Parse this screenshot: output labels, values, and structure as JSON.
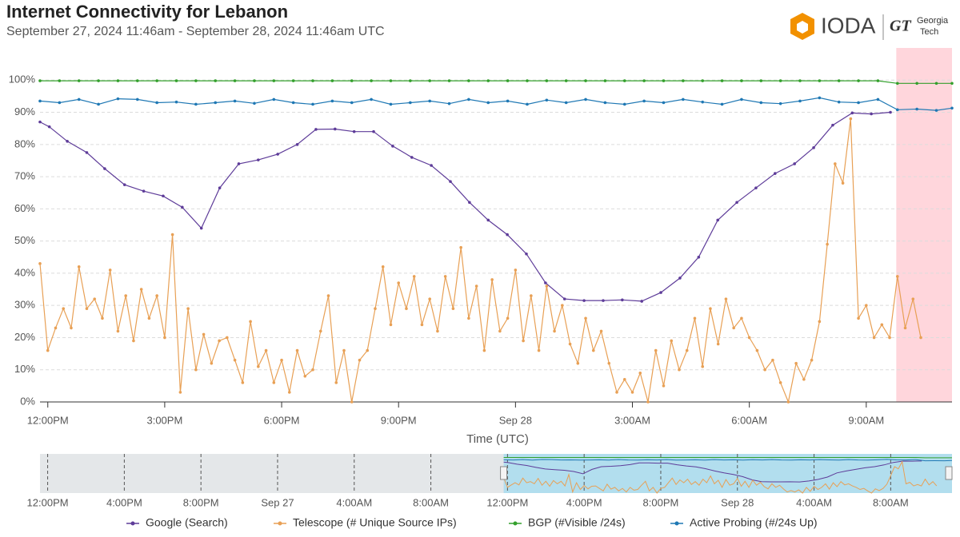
{
  "chart_data": {
    "type": "line",
    "title": "Internet Connectivity for Lebanon",
    "subtitle": "September 27, 2024 11:46am - September 28, 2024 11:46am UTC",
    "x_label": "Time (UTC)",
    "logo": {
      "name": "IODA",
      "partner_abbr": "GT",
      "partner_line1": "Georgia",
      "partner_line2": "Tech"
    },
    "xlim": [
      11.8,
      35.2
    ],
    "ylim": [
      0,
      110
    ],
    "xticks": [
      {
        "value": 12,
        "label": "12:00PM"
      },
      {
        "value": 15,
        "label": "3:00PM"
      },
      {
        "value": 18,
        "label": "6:00PM"
      },
      {
        "value": 21,
        "label": "9:00PM"
      },
      {
        "value": 24,
        "label": "Sep 28"
      },
      {
        "value": 27,
        "label": "3:00AM"
      },
      {
        "value": 30,
        "label": "6:00AM"
      },
      {
        "value": 33,
        "label": "9:00AM"
      }
    ],
    "yticks": [
      {
        "value": 0,
        "label": "0%"
      },
      {
        "value": 10,
        "label": "10%"
      },
      {
        "value": 20,
        "label": "20%"
      },
      {
        "value": 30,
        "label": "30%"
      },
      {
        "value": 40,
        "label": "40%"
      },
      {
        "value": 50,
        "label": "50%"
      },
      {
        "value": 60,
        "label": "60%"
      },
      {
        "value": 70,
        "label": "70%"
      },
      {
        "value": 80,
        "label": "80%"
      },
      {
        "value": 90,
        "label": "90%"
      },
      {
        "value": 100,
        "label": "100%"
      }
    ],
    "grid": true,
    "legend": "bottom",
    "shaded_ranges": [
      [
        33.77,
        35.2
      ]
    ],
    "shade_color": "#ffd6dc",
    "series": [
      {
        "name": "Google (Search)",
        "color": "#5e3c99",
        "x": [
          11.8,
          12.04,
          12.5,
          13,
          13.46,
          13.97,
          14.46,
          14.96,
          15.45,
          15.94,
          16.41,
          16.9,
          17.4,
          17.9,
          18.4,
          18.88,
          19.37,
          19.86,
          20.36,
          20.85,
          21.34,
          21.84,
          22.33,
          22.82,
          23.3,
          23.79,
          24.28,
          24.77,
          25.26,
          25.76,
          26.25,
          26.74,
          27.24,
          27.73,
          28.22,
          28.7,
          29.19,
          29.68,
          30.17,
          30.66,
          31.16,
          31.65,
          32.14,
          32.64,
          33.13,
          33.62
        ],
        "values": [
          87,
          85.5,
          81,
          77.5,
          72.5,
          67.5,
          65.5,
          64,
          60.5,
          54,
          66.5,
          74,
          75.2,
          77,
          80,
          84.7,
          84.8,
          84,
          84,
          79.5,
          76,
          73.5,
          68.5,
          62,
          56.5,
          52,
          46,
          37,
          32,
          31.5,
          31.5,
          31.7,
          31.3,
          34,
          38.5,
          45,
          56.5,
          62,
          66.5,
          71,
          74,
          79,
          86,
          89.8,
          89.5,
          90
        ]
      },
      {
        "name": "Telescope (# Unique Source IPs)",
        "color": "#e8a055",
        "x": [
          11.8,
          12.0,
          12.2,
          12.4,
          12.6,
          12.8,
          13.0,
          13.2,
          13.4,
          13.6,
          13.8,
          14.0,
          14.2,
          14.4,
          14.6,
          14.8,
          15.0,
          15.2,
          15.4,
          15.6,
          15.8,
          16.0,
          16.2,
          16.4,
          16.6,
          16.8,
          17.0,
          17.2,
          17.4,
          17.6,
          17.8,
          18.0,
          18.2,
          18.4,
          18.6,
          18.8,
          19.0,
          19.2,
          19.4,
          19.6,
          19.8,
          20.0,
          20.2,
          20.4,
          20.6,
          20.8,
          21.0,
          21.2,
          21.4,
          21.6,
          21.8,
          22.0,
          22.2,
          22.4,
          22.6,
          22.8,
          23.0,
          23.2,
          23.4,
          23.6,
          23.8,
          24.0,
          24.2,
          24.4,
          24.6,
          24.8,
          25.0,
          25.2,
          25.4,
          25.6,
          25.8,
          26.0,
          26.2,
          26.4,
          26.6,
          26.8,
          27.0,
          27.2,
          27.4,
          27.6,
          27.8,
          28.0,
          28.2,
          28.4,
          28.6,
          28.8,
          29.0,
          29.2,
          29.4,
          29.6,
          29.8,
          30.0,
          30.2,
          30.4,
          30.6,
          30.8,
          31.0,
          31.2,
          31.4,
          31.6,
          31.8,
          32.0,
          32.2,
          32.4,
          32.6,
          32.8,
          33.0,
          33.2,
          33.4,
          33.6,
          33.8,
          34.0,
          34.2,
          34.4
        ],
        "values": [
          43,
          16,
          23,
          29,
          23,
          42,
          29,
          32,
          26,
          41,
          22,
          33,
          19,
          35,
          26,
          33,
          20,
          52,
          3,
          29,
          10,
          21,
          12,
          19,
          20,
          13,
          6,
          25,
          11,
          16,
          6,
          13,
          3,
          16,
          8,
          10,
          22,
          33,
          6,
          16,
          0,
          13,
          16,
          29,
          42,
          24,
          37,
          29,
          39,
          24,
          32,
          22,
          39,
          29,
          48,
          26,
          36,
          16,
          38,
          22,
          26,
          41,
          19,
          33,
          16,
          36,
          22,
          30,
          18,
          12,
          26,
          16,
          22,
          12,
          3,
          7,
          3,
          9,
          0,
          16,
          5,
          19,
          10,
          16,
          26,
          11,
          29,
          18,
          32,
          23,
          26,
          20,
          16,
          10,
          13,
          6,
          0,
          12,
          7,
          13,
          25,
          49,
          74,
          68,
          88,
          26,
          30,
          20,
          24,
          20,
          39,
          23,
          32,
          20
        ]
      },
      {
        "name": "BGP (#Visible /24s)",
        "color": "#33a02c",
        "x": [
          11.8,
          12.3,
          12.8,
          13.3,
          13.8,
          14.3,
          14.8,
          15.3,
          15.8,
          16.3,
          16.8,
          17.3,
          17.8,
          18.3,
          18.8,
          19.3,
          19.8,
          20.3,
          20.8,
          21.3,
          21.8,
          22.3,
          22.8,
          23.3,
          23.8,
          24.3,
          24.8,
          25.3,
          25.8,
          26.3,
          26.8,
          27.3,
          27.8,
          28.3,
          28.8,
          29.3,
          29.8,
          30.3,
          30.8,
          31.3,
          31.8,
          32.3,
          32.8,
          33.3,
          33.8,
          34.3,
          34.8,
          35.2
        ],
        "values": [
          99.8,
          99.8,
          99.8,
          99.8,
          99.8,
          99.8,
          99.8,
          99.8,
          99.8,
          99.8,
          99.8,
          99.8,
          99.8,
          99.8,
          99.8,
          99.8,
          99.8,
          99.8,
          99.8,
          99.8,
          99.8,
          99.8,
          99.8,
          99.8,
          99.8,
          99.8,
          99.8,
          99.8,
          99.8,
          99.8,
          99.8,
          99.8,
          99.8,
          99.8,
          99.8,
          99.8,
          99.8,
          99.8,
          99.8,
          99.8,
          99.8,
          99.8,
          99.8,
          99.8,
          99,
          99,
          99,
          99
        ]
      },
      {
        "name": "Active Probing (#/24s Up)",
        "color": "#1f78b4",
        "x": [
          11.8,
          12.3,
          12.8,
          13.3,
          13.8,
          14.3,
          14.8,
          15.3,
          15.8,
          16.3,
          16.8,
          17.3,
          17.8,
          18.3,
          18.8,
          19.3,
          19.8,
          20.3,
          20.8,
          21.3,
          21.8,
          22.3,
          22.8,
          23.3,
          23.8,
          24.3,
          24.8,
          25.3,
          25.8,
          26.3,
          26.8,
          27.3,
          27.8,
          28.3,
          28.8,
          29.3,
          29.8,
          30.3,
          30.8,
          31.3,
          31.8,
          32.3,
          32.8,
          33.3,
          33.8,
          34.3,
          34.8,
          35.2
        ],
        "values": [
          93.5,
          93,
          94,
          92.5,
          94.2,
          94,
          93,
          93.2,
          92.5,
          93,
          93.5,
          92.8,
          94,
          93,
          92.5,
          93.5,
          93,
          94,
          92.5,
          93,
          93.5,
          92.7,
          94,
          93,
          93.5,
          92.5,
          93.8,
          93,
          94,
          93,
          92.5,
          93.5,
          93,
          94,
          93.2,
          92.5,
          94,
          93,
          92.7,
          93.5,
          94.5,
          93.2,
          93,
          94,
          90.8,
          91,
          90.6,
          91.3
        ]
      }
    ],
    "navigator": {
      "xlim": [
        -12.4,
        35.2
      ],
      "ylim": [
        0,
        110
      ],
      "xticks": [
        {
          "value": -12,
          "label": "12:00PM"
        },
        {
          "value": -8,
          "label": "4:00PM"
        },
        {
          "value": -4,
          "label": "8:00PM"
        },
        {
          "value": 0,
          "label": "Sep 27"
        },
        {
          "value": 4,
          "label": "4:00AM"
        },
        {
          "value": 8,
          "label": "8:00AM"
        },
        {
          "value": 12,
          "label": "12:00PM"
        },
        {
          "value": 16,
          "label": "4:00PM"
        },
        {
          "value": 20,
          "label": "8:00PM"
        },
        {
          "value": 24,
          "label": "Sep 28"
        },
        {
          "value": 28,
          "label": "4:00AM"
        },
        {
          "value": 32,
          "label": "8:00AM"
        }
      ]
    }
  }
}
